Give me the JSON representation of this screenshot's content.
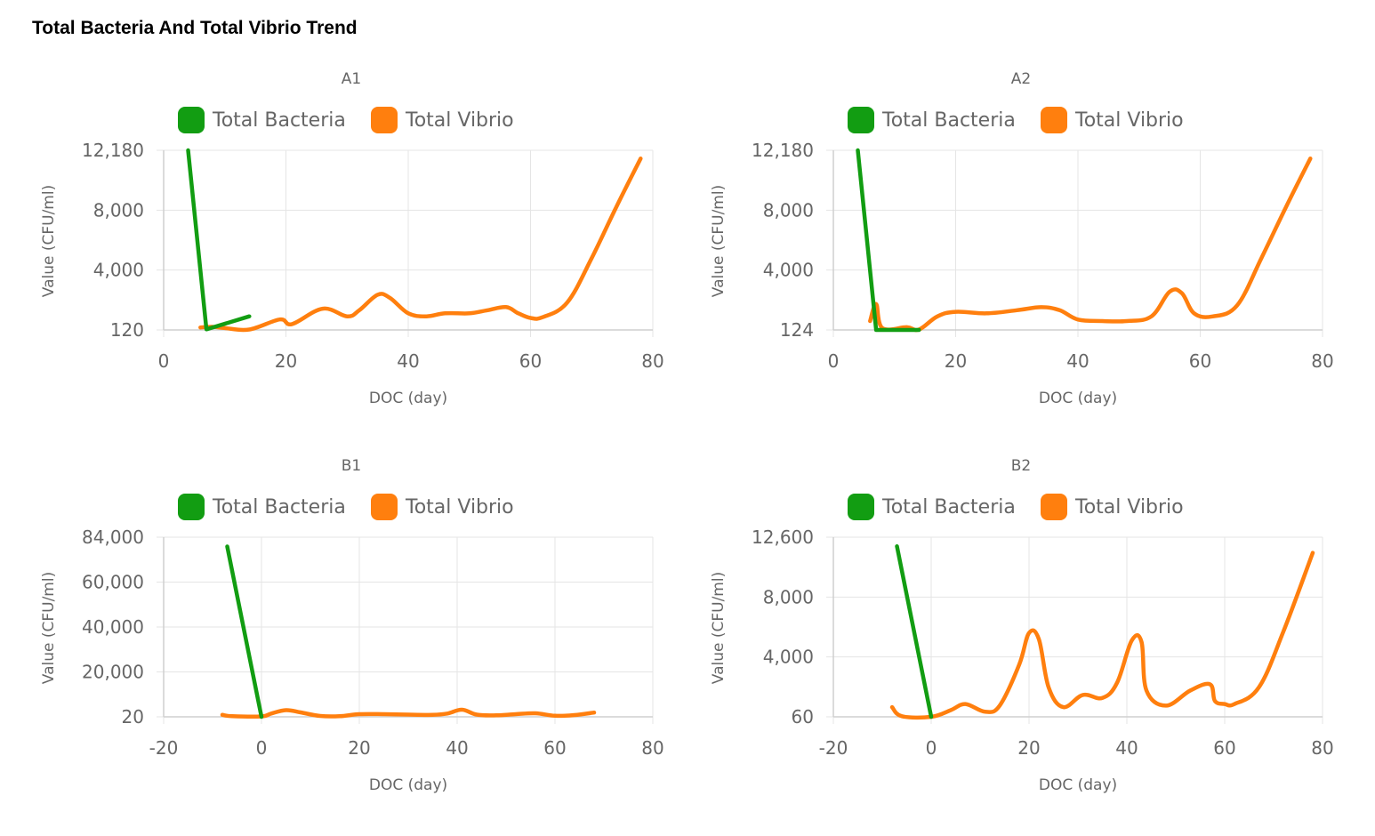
{
  "page_title": "Total Bacteria And Total Vibrio Trend",
  "colors": {
    "bacteria": "#129d12",
    "vibrio": "#ff7f0e"
  },
  "chart_data": [
    {
      "type": "line",
      "title": "A1",
      "xlabel": "DOC (day)",
      "ylabel": "Value (CFU/ml)",
      "xlim": [
        0,
        80
      ],
      "xticks": [
        0,
        20,
        40,
        60,
        80
      ],
      "xtick_labels": [
        "0",
        "20",
        "40",
        "60",
        "80"
      ],
      "ylim": [
        120,
        12180
      ],
      "yticks": [
        120,
        4000,
        8000,
        12180
      ],
      "ytick_labels": [
        "120",
        "4,000",
        "8,000",
        "12,180"
      ],
      "legend": [
        "Total Bacteria",
        "Total Vibrio"
      ],
      "series": [
        {
          "name": "Total Bacteria",
          "x": [
            4,
            7,
            14
          ],
          "y": [
            12180,
            160,
            1000
          ]
        },
        {
          "name": "Total Vibrio",
          "x": [
            6,
            8,
            10,
            14,
            19,
            21,
            26,
            30,
            32,
            35,
            37,
            40,
            43,
            46,
            50,
            53,
            56,
            58,
            60,
            62,
            66,
            70,
            74,
            78
          ],
          "y": [
            280,
            320,
            240,
            150,
            800,
            500,
            1500,
            1000,
            1400,
            2400,
            2200,
            1200,
            1000,
            1200,
            1200,
            1400,
            1600,
            1200,
            900,
            950,
            1900,
            4800,
            8200,
            11600
          ]
        }
      ]
    },
    {
      "type": "line",
      "title": "A2",
      "xlabel": "DOC (day)",
      "ylabel": "Value (CFU/ml)",
      "xlim": [
        0,
        80
      ],
      "xticks": [
        0,
        20,
        40,
        60,
        80
      ],
      "xtick_labels": [
        "0",
        "20",
        "40",
        "60",
        "80"
      ],
      "ylim": [
        124,
        12180
      ],
      "yticks": [
        124,
        4000,
        8000,
        12180
      ],
      "ytick_labels": [
        "124",
        "4,000",
        "8,000",
        "12,180"
      ],
      "legend": [
        "Total Bacteria",
        "Total Vibrio"
      ],
      "series": [
        {
          "name": "Total Bacteria",
          "x": [
            4,
            7,
            14
          ],
          "y": [
            12180,
            124,
            124
          ]
        },
        {
          "name": "Total Vibrio",
          "x": [
            6,
            7,
            8,
            12,
            14,
            17,
            20,
            25,
            30,
            34,
            37,
            40,
            44,
            48,
            52,
            55,
            57,
            59,
            62,
            66,
            70,
            74,
            78
          ],
          "y": [
            700,
            1800,
            250,
            300,
            150,
            1000,
            1300,
            1200,
            1400,
            1600,
            1400,
            800,
            700,
            700,
            1000,
            2600,
            2500,
            1200,
            1000,
            1700,
            4800,
            8200,
            11600
          ]
        }
      ]
    },
    {
      "type": "line",
      "title": "B1",
      "xlabel": "DOC (day)",
      "ylabel": "Value (CFU/ml)",
      "xlim": [
        -20,
        80
      ],
      "xticks": [
        -20,
        0,
        20,
        40,
        60,
        80
      ],
      "xtick_labels": [
        "-20",
        "0",
        "20",
        "40",
        "60",
        "80"
      ],
      "ylim": [
        20,
        84000
      ],
      "yticks": [
        20,
        20000,
        40000,
        60000,
        84000
      ],
      "ytick_labels": [
        "20",
        "20,000",
        "40,000",
        "60,000",
        "84,000"
      ],
      "legend": [
        "Total Bacteria",
        "Total Vibrio"
      ],
      "series": [
        {
          "name": "Total Bacteria",
          "x": [
            -7,
            0
          ],
          "y": [
            79000,
            20
          ]
        },
        {
          "name": "Total Vibrio",
          "x": [
            -8,
            -6,
            0,
            2,
            5,
            8,
            12,
            16,
            20,
            25,
            30,
            35,
            38,
            41,
            44,
            48,
            52,
            56,
            60,
            64,
            68
          ],
          "y": [
            900,
            300,
            200,
            1500,
            3000,
            2000,
            400,
            300,
            1200,
            1200,
            1000,
            900,
            1500,
            3200,
            1000,
            700,
            1200,
            1600,
            500,
            800,
            1900
          ]
        }
      ]
    },
    {
      "type": "line",
      "title": "B2",
      "xlabel": "DOC (day)",
      "ylabel": "Value (CFU/ml)",
      "xlim": [
        -20,
        80
      ],
      "xticks": [
        -20,
        0,
        20,
        40,
        60,
        80
      ],
      "xtick_labels": [
        "-20",
        "0",
        "20",
        "40",
        "60",
        "80"
      ],
      "ylim": [
        60,
        12600
      ],
      "yticks": [
        60,
        4000,
        8000,
        12600
      ],
      "ytick_labels": [
        "60",
        "4,000",
        "8,000",
        "12,600"
      ],
      "legend": [
        "Total Bacteria",
        "Total Vibrio"
      ],
      "series": [
        {
          "name": "Total Bacteria",
          "x": [
            -7,
            0
          ],
          "y": [
            11900,
            60
          ]
        },
        {
          "name": "Total Vibrio",
          "x": [
            -8,
            -6,
            0,
            4,
            7,
            11,
            14,
            18,
            20,
            22,
            24,
            27,
            31,
            35,
            38,
            41,
            43,
            44,
            48,
            53,
            57,
            58,
            60,
            62,
            67,
            72,
            78
          ],
          "y": [
            700,
            100,
            60,
            500,
            900,
            400,
            800,
            3500,
            5600,
            5200,
            2000,
            700,
            1500,
            1300,
            2300,
            5100,
            5000,
            1800,
            800,
            1800,
            2200,
            1100,
            900,
            900,
            2000,
            5700,
            11400
          ]
        }
      ]
    }
  ]
}
